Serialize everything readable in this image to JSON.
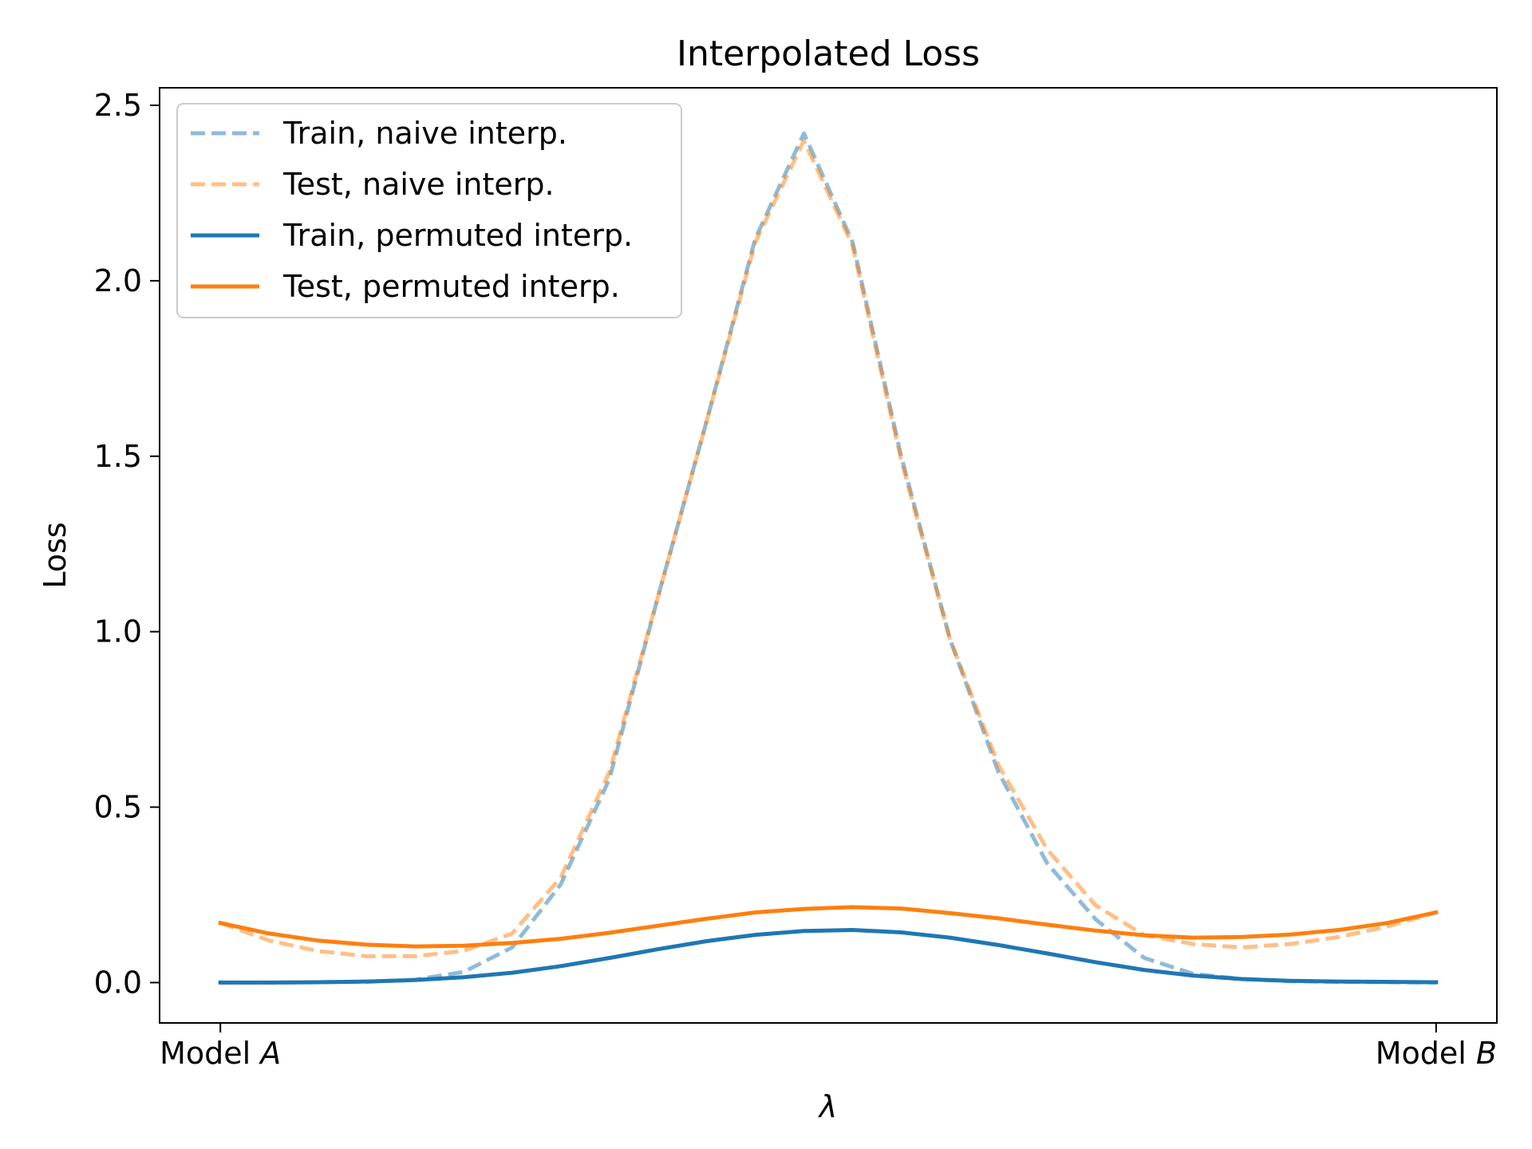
{
  "chart_data": {
    "type": "line",
    "title": "Interpolated Loss",
    "xlabel": "λ",
    "ylabel": "Loss",
    "xlim": [
      -0.05,
      1.05
    ],
    "ylim": [
      -0.115,
      2.55
    ],
    "x_ticks": [
      {
        "value": 0,
        "prefix": "Model ",
        "var": "A"
      },
      {
        "value": 1,
        "prefix": "Model ",
        "var": "B"
      }
    ],
    "y_ticks": [
      {
        "value": 0.0,
        "label": "0.0"
      },
      {
        "value": 0.5,
        "label": "0.5"
      },
      {
        "value": 1.0,
        "label": "1.0"
      },
      {
        "value": 1.5,
        "label": "1.5"
      },
      {
        "value": 2.0,
        "label": "2.0"
      },
      {
        "value": 2.5,
        "label": "2.5"
      }
    ],
    "grid": false,
    "legend_position": "upper-left",
    "x": [
      0,
      0.04,
      0.08,
      0.12,
      0.16,
      0.2,
      0.24,
      0.28,
      0.32,
      0.36,
      0.4,
      0.44,
      0.48,
      0.52,
      0.56,
      0.6,
      0.64,
      0.68,
      0.72,
      0.76,
      0.8,
      0.84,
      0.88,
      0.92,
      0.96,
      1.0
    ],
    "series": [
      {
        "name": "Train, naive interp.",
        "color": "#1f77b4",
        "dashed": true,
        "opacity": 0.5,
        "values": [
          0.0,
          0.0,
          0.001,
          0.002,
          0.008,
          0.03,
          0.1,
          0.28,
          0.58,
          1.1,
          1.6,
          2.12,
          2.42,
          2.11,
          1.5,
          0.98,
          0.6,
          0.34,
          0.18,
          0.07,
          0.025,
          0.01,
          0.004,
          0.002,
          0.001,
          0.0
        ]
      },
      {
        "name": "Test, naive interp.",
        "color": "#ff7f0e",
        "dashed": true,
        "opacity": 0.5,
        "values": [
          0.17,
          0.12,
          0.09,
          0.075,
          0.075,
          0.09,
          0.14,
          0.3,
          0.6,
          1.1,
          1.6,
          2.11,
          2.4,
          2.1,
          1.49,
          0.98,
          0.62,
          0.38,
          0.22,
          0.135,
          0.11,
          0.1,
          0.11,
          0.13,
          0.16,
          0.2
        ]
      },
      {
        "name": "Train, permuted interp.",
        "color": "#1f77b4",
        "dashed": false,
        "opacity": 1,
        "values": [
          0.0,
          0.0,
          0.001,
          0.003,
          0.007,
          0.015,
          0.028,
          0.047,
          0.07,
          0.095,
          0.118,
          0.136,
          0.147,
          0.15,
          0.143,
          0.128,
          0.107,
          0.083,
          0.058,
          0.036,
          0.02,
          0.01,
          0.005,
          0.003,
          0.002,
          0.001
        ]
      },
      {
        "name": "Test, permuted interp.",
        "color": "#ff7f0e",
        "dashed": false,
        "opacity": 1,
        "values": [
          0.17,
          0.14,
          0.12,
          0.108,
          0.103,
          0.105,
          0.113,
          0.125,
          0.142,
          0.162,
          0.182,
          0.2,
          0.21,
          0.215,
          0.211,
          0.198,
          0.183,
          0.165,
          0.148,
          0.135,
          0.128,
          0.13,
          0.137,
          0.15,
          0.17,
          0.2
        ]
      }
    ]
  }
}
